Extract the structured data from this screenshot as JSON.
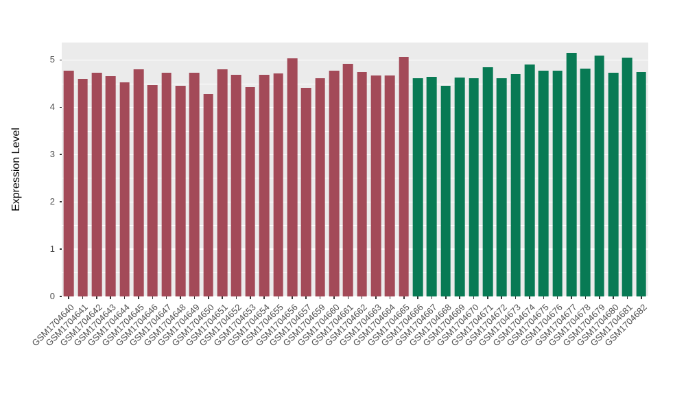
{
  "chart_data": {
    "type": "bar",
    "title": "",
    "xlabel": "",
    "ylabel": "Expression Level",
    "ylim": [
      0,
      5.37
    ],
    "yticks": [
      0,
      1,
      2,
      3,
      4,
      5
    ],
    "grid": true,
    "legend": "none",
    "panel_background": "#EBEBEB",
    "grid_color": "#FFFFFF",
    "axis_text_color": "#4D4D4D",
    "tick_mark_color": "#333333",
    "bar_width_fraction": 0.72,
    "groups": [
      {
        "name": "group-1",
        "color": "#A34A58",
        "from": 0,
        "to": 24
      },
      {
        "name": "group-2",
        "color": "#087A54",
        "from": 25,
        "to": 41
      }
    ],
    "categories": [
      "GSM1704640",
      "GSM1704641",
      "GSM1704642",
      "GSM1704643",
      "GSM1704644",
      "GSM1704645",
      "GSM1704646",
      "GSM1704647",
      "GSM1704648",
      "GSM1704649",
      "GSM1704650",
      "GSM1704651",
      "GSM1704652",
      "GSM1704653",
      "GSM1704654",
      "GSM1704655",
      "GSM1704656",
      "GSM1704657",
      "GSM1704659",
      "GSM1704660",
      "GSM1704661",
      "GSM1704662",
      "GSM1704663",
      "GSM1704664",
      "GSM1704665",
      "GSM1704666",
      "GSM1704667",
      "GSM1704668",
      "GSM1704669",
      "GSM1704670",
      "GSM1704671",
      "GSM1704672",
      "GSM1704673",
      "GSM1704674",
      "GSM1704675",
      "GSM1704676",
      "GSM1704677",
      "GSM1704678",
      "GSM1704679",
      "GSM1704680",
      "GSM1704681",
      "GSM1704682"
    ],
    "values": [
      4.78,
      4.6,
      4.73,
      4.66,
      4.53,
      4.8,
      4.47,
      4.73,
      4.45,
      4.73,
      4.28,
      4.8,
      4.69,
      4.43,
      4.69,
      4.72,
      5.03,
      4.41,
      4.62,
      4.77,
      4.92,
      4.75,
      4.68,
      4.68,
      5.06,
      4.61,
      4.64,
      4.45,
      4.63,
      4.62,
      4.85,
      4.61,
      4.7,
      4.9,
      4.77,
      4.78,
      5.15,
      4.82,
      5.1,
      4.73,
      5.05,
      4.74
    ]
  }
}
